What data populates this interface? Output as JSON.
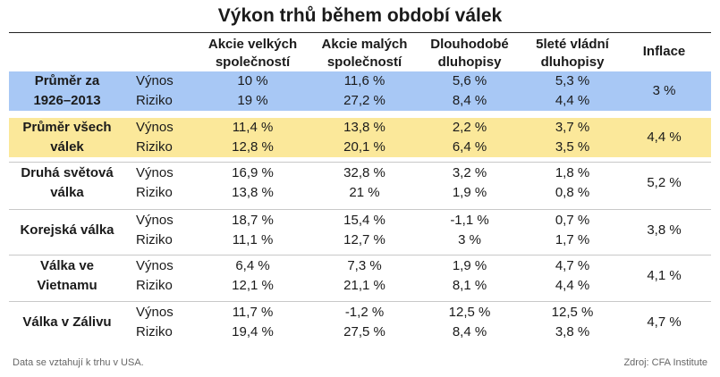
{
  "chart_data": {
    "type": "table",
    "title": "Výkon trhů během období válek",
    "columns": [
      [
        "Akcie velkých",
        "společností"
      ],
      [
        "Akcie malých",
        "společností"
      ],
      [
        "Dlouhodobé",
        "dluhopisy"
      ],
      [
        "5leté vládní",
        "dluhopisy"
      ],
      [
        "Inflace"
      ]
    ],
    "metric_labels": [
      "Výnos",
      "Riziko"
    ],
    "groups": [
      {
        "label": [
          "Průměr za",
          "1926–2013"
        ],
        "highlight": "#a8c8f5",
        "vynos": [
          "10 %",
          "11,6 %",
          "5,6 %",
          "5,3 %"
        ],
        "riziko": [
          "19 %",
          "27,2 %",
          "8,4 %",
          "4,4 %"
        ],
        "inflace": "3 %"
      },
      {
        "label": [
          "Průměr všech",
          "válek"
        ],
        "highlight": "#fbe89a",
        "vynos": [
          "11,4 %",
          "13,8 %",
          "2,2 %",
          "3,7 %"
        ],
        "riziko": [
          "12,8 %",
          "20,1 %",
          "6,4 %",
          "3,5 %"
        ],
        "inflace": "4,4 %"
      },
      {
        "label": [
          "Druhá světová",
          "válka"
        ],
        "highlight": "",
        "vynos": [
          "16,9 %",
          "32,8 %",
          "3,2 %",
          "1,8 %"
        ],
        "riziko": [
          "13,8 %",
          "21 %",
          "1,9 %",
          "0,8 %"
        ],
        "inflace": "5,2 %"
      },
      {
        "label": [
          "Korejská válka"
        ],
        "highlight": "",
        "vynos": [
          "18,7 %",
          "15,4 %",
          "-1,1 %",
          "0,7 %"
        ],
        "riziko": [
          "11,1 %",
          "12,7 %",
          "3 %",
          "1,7 %"
        ],
        "inflace": "3,8 %"
      },
      {
        "label": [
          "Válka ve",
          "Vietnamu"
        ],
        "highlight": "",
        "vynos": [
          "6,4 %",
          "7,3 %",
          "1,9 %",
          "4,7 %"
        ],
        "riziko": [
          "12,1 %",
          "21,1 %",
          "8,1 %",
          "4,4 %"
        ],
        "inflace": "4,1 %"
      },
      {
        "label": [
          "Válka v Zálivu"
        ],
        "highlight": "",
        "vynos": [
          "11,7 %",
          "-1,2 %",
          "12,5 %",
          "12,5 %"
        ],
        "riziko": [
          "19,4 %",
          "27,5 %",
          "8,4 %",
          "3,8 %"
        ],
        "inflace": "4,7 %"
      }
    ]
  },
  "footer": {
    "note": "Data se vztahují k trhu v USA.",
    "source": "Zdroj: CFA Institute"
  }
}
